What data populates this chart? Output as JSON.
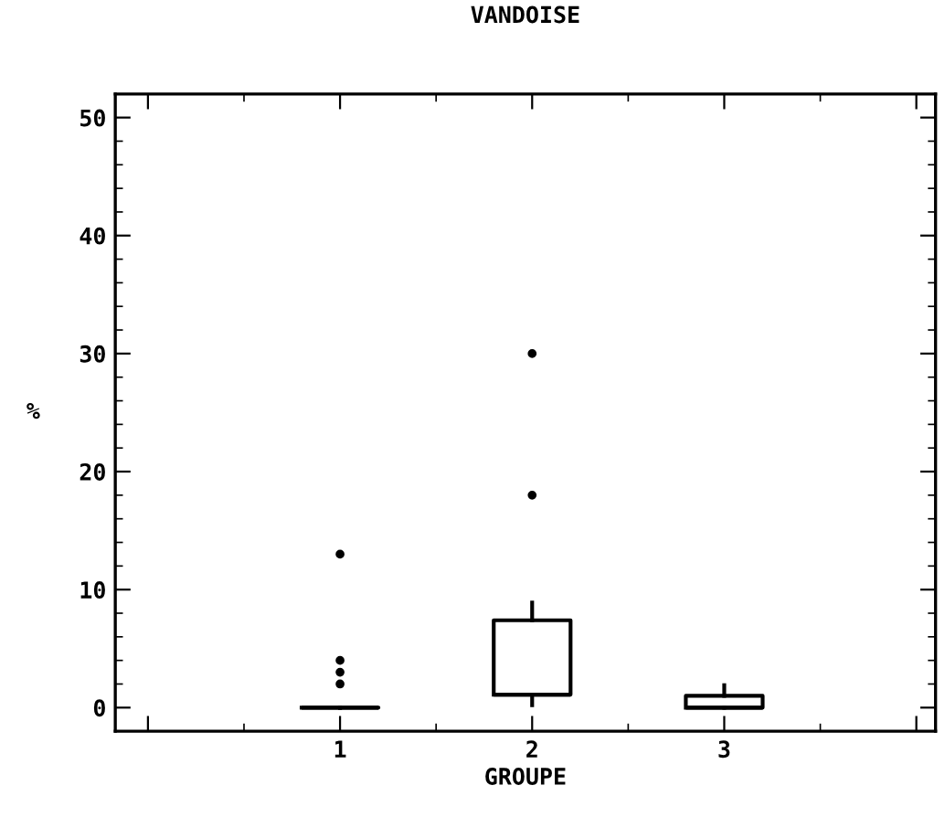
{
  "chart_data": {
    "type": "box",
    "title": "VANDOISE",
    "xlabel": "GROUPE",
    "ylabel": "%",
    "categories": [
      null,
      "1",
      "2",
      "3",
      null
    ],
    "boxes": [
      null,
      {
        "low": 0,
        "q1": 0,
        "median": 0,
        "q3": 0,
        "high": 0,
        "outliers": [
          13,
          4,
          3,
          2
        ]
      },
      {
        "low": 0.2,
        "q1": 1.1,
        "median": 1.1,
        "q3": 7.4,
        "high": 8.9,
        "outliers": [
          30,
          18
        ]
      },
      {
        "low": 0,
        "q1": 0,
        "median": 0,
        "q3": 1,
        "high": 1.9
      },
      null
    ],
    "ylim": [
      -2,
      52
    ],
    "yticks": [
      0,
      10,
      20,
      30,
      40,
      50
    ],
    "grid": false
  }
}
